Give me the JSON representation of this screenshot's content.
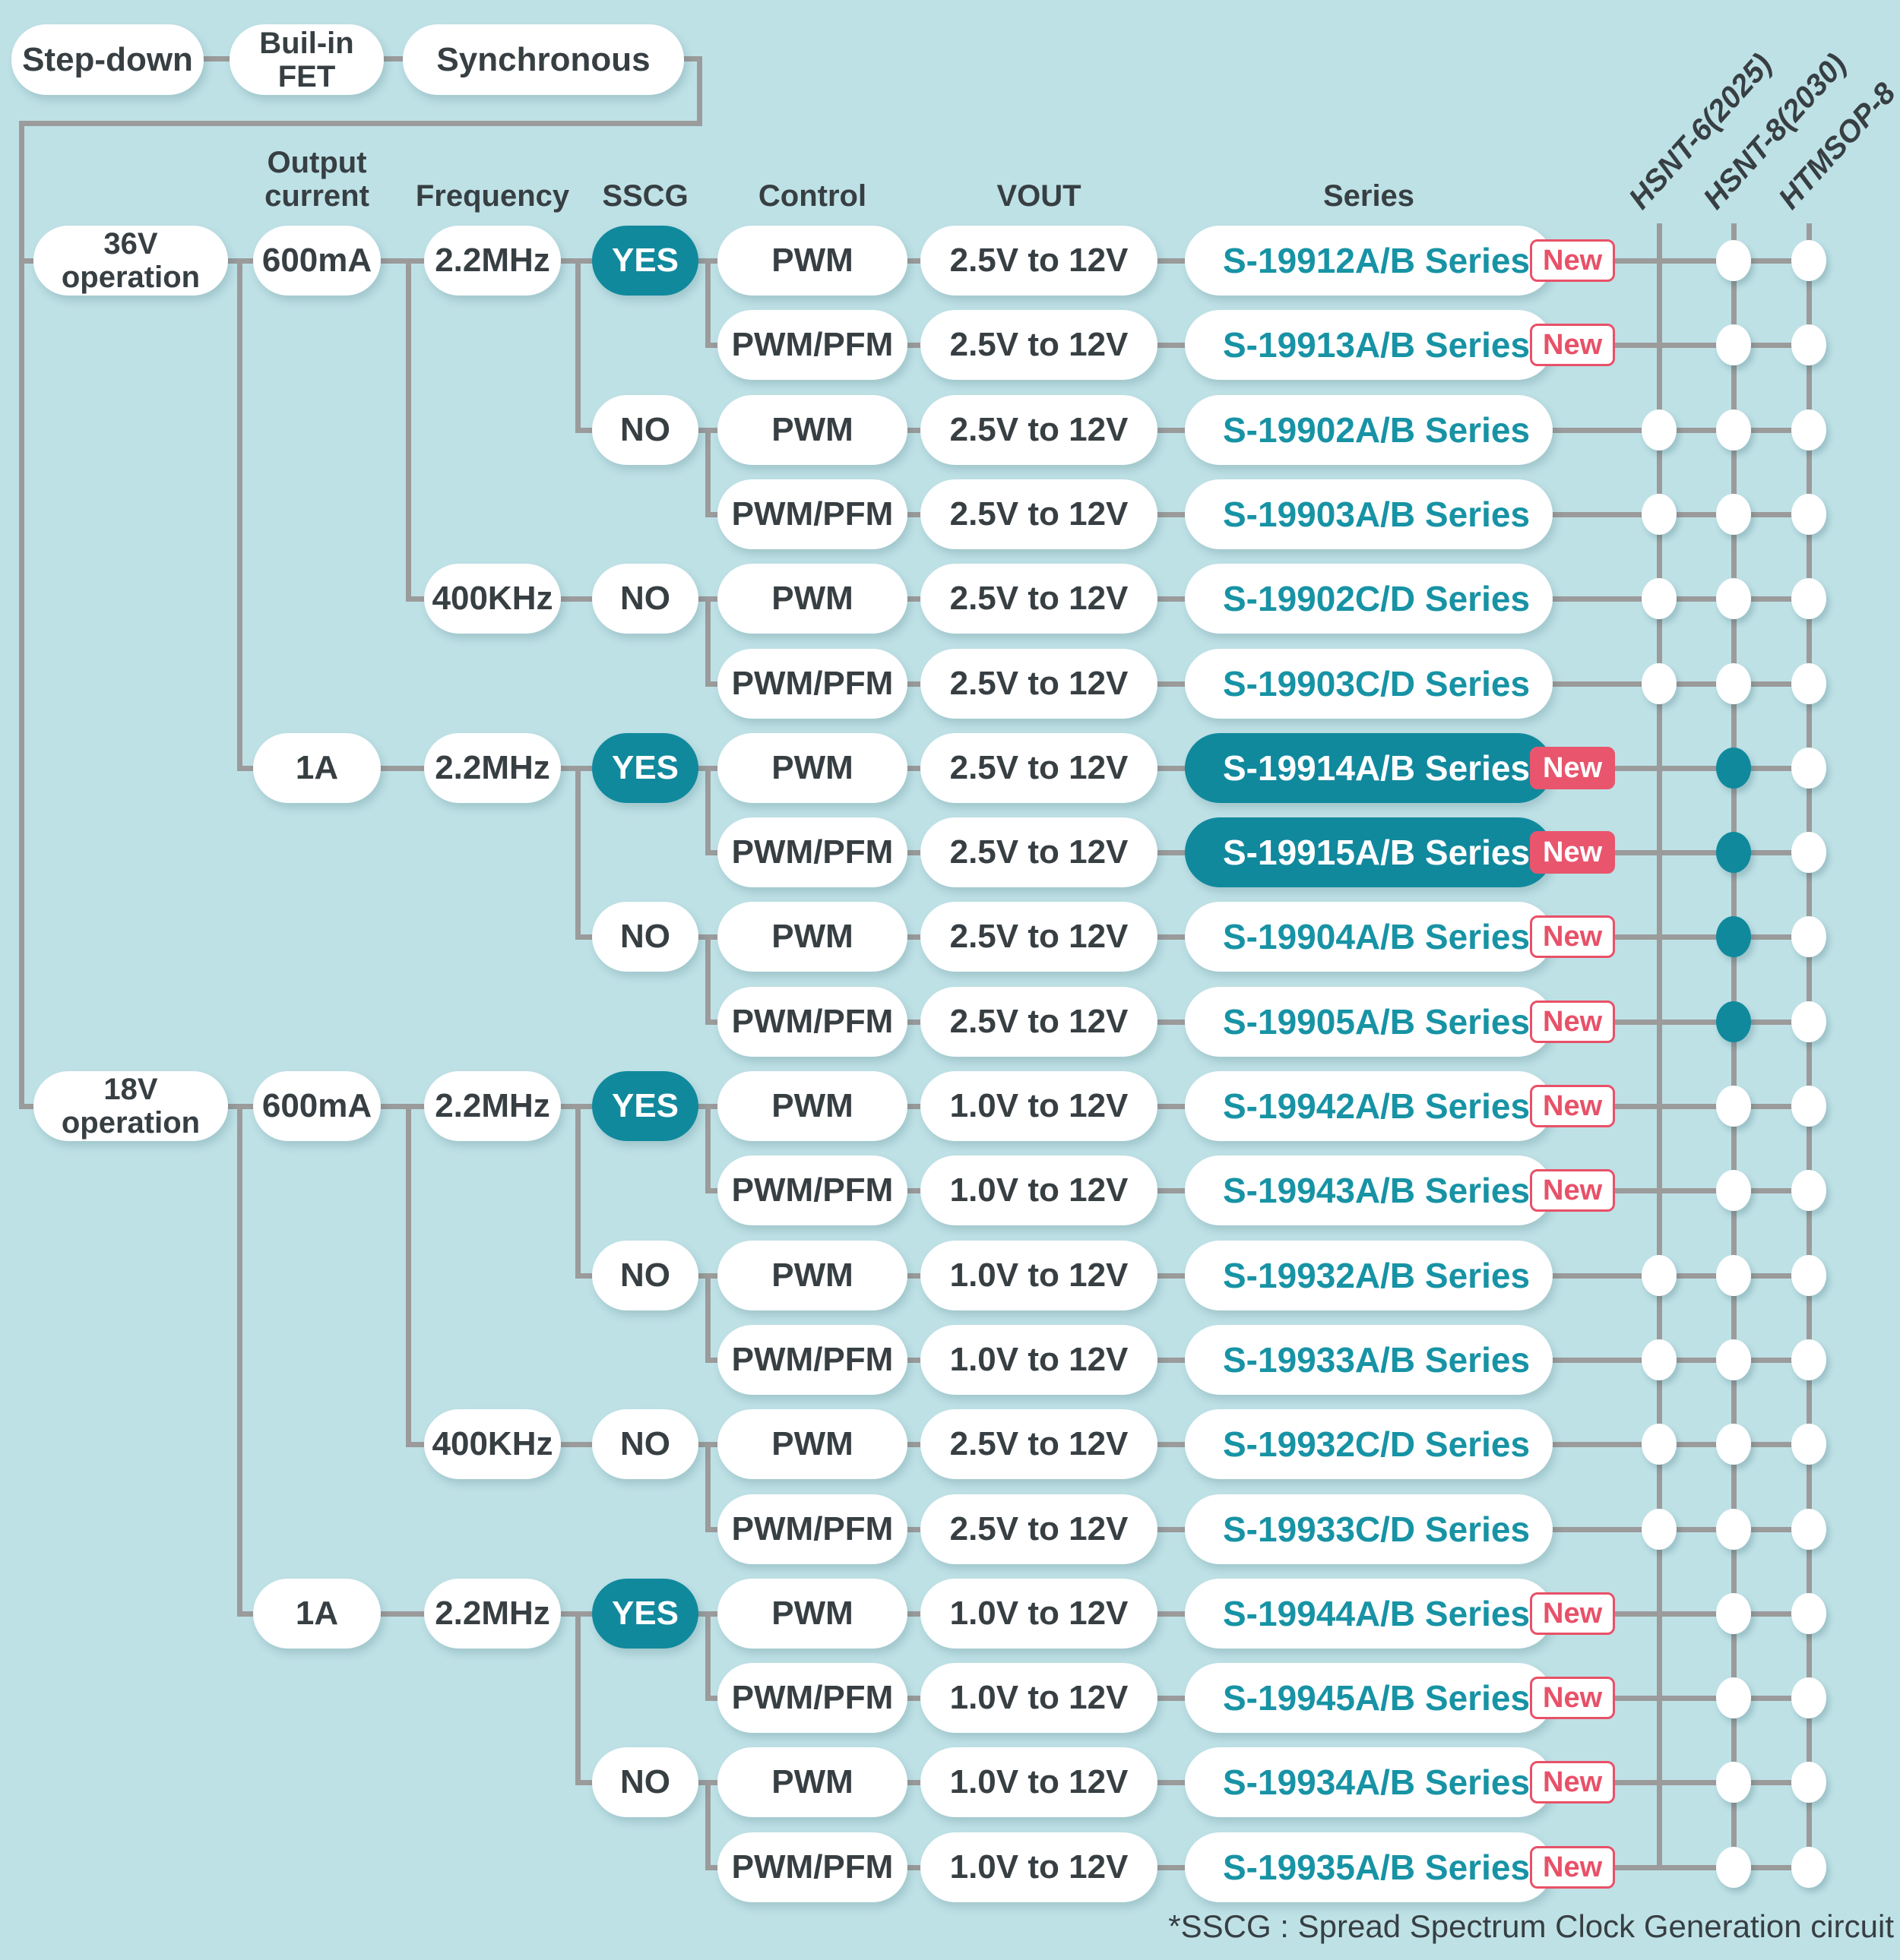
{
  "palette": {
    "background": "#bee1e6",
    "line_gray": "#9b9b9b",
    "teal_accent": "#10899d",
    "series_text_teal": "#1793a5",
    "new_red": "#e85168",
    "new_red_solid": "#e8556d",
    "text_dark": "#373f43"
  },
  "header_chain": [
    "Step-down",
    "Buil-in\nFET",
    "Synchronous"
  ],
  "column_headers": {
    "output_current": "Output\ncurrent",
    "frequency": "Frequency",
    "sscg": "SSCG",
    "control": "Control",
    "vout": "VOUT",
    "series": "Series"
  },
  "package_columns": [
    "HSNT-6(2025)",
    "HSNT-8(2030)",
    "HTMSOP-8"
  ],
  "badge_label": "New",
  "footer_note": "*SSCG : Spread Spectrum Clock Generation circuit",
  "tree_groups": {
    "operation": [
      {
        "label": "36V\noperation",
        "row": 0
      },
      {
        "label": "18V\noperation",
        "row": 10
      }
    ],
    "output_current": [
      {
        "label": "600mA",
        "row": 0
      },
      {
        "label": "1A",
        "row": 6
      },
      {
        "label": "600mA",
        "row": 10
      },
      {
        "label": "1A",
        "row": 16
      }
    ],
    "frequency": [
      {
        "label": "2.2MHz",
        "row": 0
      },
      {
        "label": "400KHz",
        "row": 4
      },
      {
        "label": "2.2MHz",
        "row": 6
      },
      {
        "label": "2.2MHz",
        "row": 10
      },
      {
        "label": "400KHz",
        "row": 14
      },
      {
        "label": "2.2MHz",
        "row": 16
      }
    ],
    "sscg": [
      {
        "label": "YES",
        "row": 0,
        "filled": true
      },
      {
        "label": "NO",
        "row": 2,
        "filled": false
      },
      {
        "label": "NO",
        "row": 4,
        "filled": false
      },
      {
        "label": "YES",
        "row": 6,
        "filled": true
      },
      {
        "label": "NO",
        "row": 8,
        "filled": false
      },
      {
        "label": "YES",
        "row": 10,
        "filled": true
      },
      {
        "label": "NO",
        "row": 12,
        "filled": false
      },
      {
        "label": "NO",
        "row": 14,
        "filled": false
      },
      {
        "label": "YES",
        "row": 16,
        "filled": true
      },
      {
        "label": "NO",
        "row": 18,
        "filled": false
      }
    ]
  },
  "rows": [
    {
      "control": "PWM",
      "vout": "2.5V to 12V",
      "series": "S-19912A/B Series",
      "new": "outline",
      "highlight": false,
      "dots": [
        "none",
        "white",
        "white"
      ]
    },
    {
      "control": "PWM/PFM",
      "vout": "2.5V to 12V",
      "series": "S-19913A/B Series",
      "new": "outline",
      "highlight": false,
      "dots": [
        "none",
        "white",
        "white"
      ]
    },
    {
      "control": "PWM",
      "vout": "2.5V to 12V",
      "series": "S-19902A/B Series",
      "new": "none",
      "highlight": false,
      "dots": [
        "white",
        "white",
        "white"
      ]
    },
    {
      "control": "PWM/PFM",
      "vout": "2.5V to 12V",
      "series": "S-19903A/B Series",
      "new": "none",
      "highlight": false,
      "dots": [
        "white",
        "white",
        "white"
      ]
    },
    {
      "control": "PWM",
      "vout": "2.5V to 12V",
      "series": "S-19902C/D Series",
      "new": "none",
      "highlight": false,
      "dots": [
        "white",
        "white",
        "white"
      ]
    },
    {
      "control": "PWM/PFM",
      "vout": "2.5V to 12V",
      "series": "S-19903C/D Series",
      "new": "none",
      "highlight": false,
      "dots": [
        "white",
        "white",
        "white"
      ]
    },
    {
      "control": "PWM",
      "vout": "2.5V to 12V",
      "series": "S-19914A/B Series",
      "new": "solid",
      "highlight": true,
      "dots": [
        "none",
        "teal",
        "white"
      ]
    },
    {
      "control": "PWM/PFM",
      "vout": "2.5V to 12V",
      "series": "S-19915A/B Series",
      "new": "solid",
      "highlight": true,
      "dots": [
        "none",
        "teal",
        "white"
      ]
    },
    {
      "control": "PWM",
      "vout": "2.5V to 12V",
      "series": "S-19904A/B Series",
      "new": "outline",
      "highlight": false,
      "dots": [
        "none",
        "teal",
        "white"
      ]
    },
    {
      "control": "PWM/PFM",
      "vout": "2.5V to 12V",
      "series": "S-19905A/B Series",
      "new": "outline",
      "highlight": false,
      "dots": [
        "none",
        "teal",
        "white"
      ]
    },
    {
      "control": "PWM",
      "vout": "1.0V to 12V",
      "series": "S-19942A/B Series",
      "new": "outline",
      "highlight": false,
      "dots": [
        "none",
        "white",
        "white"
      ]
    },
    {
      "control": "PWM/PFM",
      "vout": "1.0V to 12V",
      "series": "S-19943A/B Series",
      "new": "outline",
      "highlight": false,
      "dots": [
        "none",
        "white",
        "white"
      ]
    },
    {
      "control": "PWM",
      "vout": "1.0V to 12V",
      "series": "S-19932A/B Series",
      "new": "none",
      "highlight": false,
      "dots": [
        "white",
        "white",
        "white"
      ]
    },
    {
      "control": "PWM/PFM",
      "vout": "1.0V to 12V",
      "series": "S-19933A/B Series",
      "new": "none",
      "highlight": false,
      "dots": [
        "white",
        "white",
        "white"
      ]
    },
    {
      "control": "PWM",
      "vout": "2.5V to 12V",
      "series": "S-19932C/D Series",
      "new": "none",
      "highlight": false,
      "dots": [
        "white",
        "white",
        "white"
      ]
    },
    {
      "control": "PWM/PFM",
      "vout": "2.5V to 12V",
      "series": "S-19933C/D Series",
      "new": "none",
      "highlight": false,
      "dots": [
        "white",
        "white",
        "white"
      ]
    },
    {
      "control": "PWM",
      "vout": "1.0V to 12V",
      "series": "S-19944A/B Series",
      "new": "outline",
      "highlight": false,
      "dots": [
        "none",
        "white",
        "white"
      ]
    },
    {
      "control": "PWM/PFM",
      "vout": "1.0V to 12V",
      "series": "S-19945A/B Series",
      "new": "outline",
      "highlight": false,
      "dots": [
        "none",
        "white",
        "white"
      ]
    },
    {
      "control": "PWM",
      "vout": "1.0V to 12V",
      "series": "S-19934A/B Series",
      "new": "outline",
      "highlight": false,
      "dots": [
        "none",
        "white",
        "white"
      ]
    },
    {
      "control": "PWM/PFM",
      "vout": "1.0V to 12V",
      "series": "S-19935A/B Series",
      "new": "outline",
      "highlight": false,
      "dots": [
        "none",
        "white",
        "white"
      ]
    }
  ]
}
